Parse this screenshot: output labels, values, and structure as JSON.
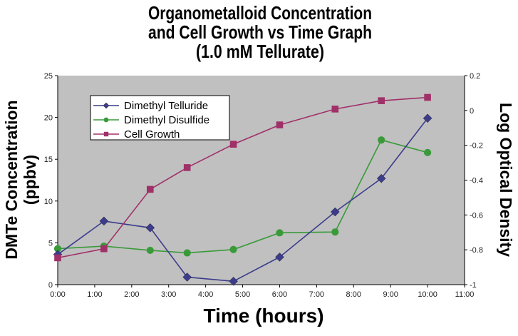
{
  "chart_data": {
    "type": "line",
    "title": [
      "Organometalloid Concentration",
      "and Cell Growth vs Time Graph",
      "(1.0 mM Tellurate)"
    ],
    "xlabel": "Time (hours)",
    "ylabel": [
      "DMTe Concentration",
      "(ppbv)"
    ],
    "y2label": "Log Optical Density",
    "xlim": [
      0,
      11
    ],
    "ylim": [
      0,
      25
    ],
    "y2lim": [
      -1,
      0.2
    ],
    "xticks": [
      "0:00",
      "1:00",
      "2:00",
      "3:00",
      "4:00",
      "5:00",
      "6:00",
      "7:00",
      "8:00",
      "9:00",
      "10:00",
      "11:00"
    ],
    "yticks": [
      "0",
      "5",
      "10",
      "15",
      "20",
      "25"
    ],
    "y2ticks": [
      "-1",
      "-0.8",
      "-0.6",
      "-0.4",
      "-0.2",
      "0",
      "0.2"
    ],
    "grid": false,
    "legend_position": "top-left",
    "x": [
      0,
      1.25,
      2.5,
      3.5,
      4.75,
      6,
      7.5,
      8.75,
      10
    ],
    "series": [
      {
        "name": "Dimethyl Telluride",
        "axis": "left",
        "marker": "diamond",
        "color": "#3c3c8c",
        "values": [
          3.6,
          7.6,
          6.8,
          0.9,
          0.4,
          3.3,
          8.7,
          12.7,
          19.9
        ]
      },
      {
        "name": "Dimethyl Disulfide",
        "axis": "left",
        "marker": "circle",
        "color": "#3a9a3a",
        "values": [
          4.3,
          4.6,
          4.1,
          3.8,
          4.2,
          6.2,
          6.3,
          17.3,
          15.8
        ]
      },
      {
        "name": "Cell Growth",
        "axis": "right",
        "marker": "square",
        "color": "#a03068",
        "values": [
          -0.846,
          -0.794,
          -0.453,
          -0.328,
          -0.194,
          -0.083,
          0.008,
          0.056,
          0.075
        ]
      }
    ]
  }
}
